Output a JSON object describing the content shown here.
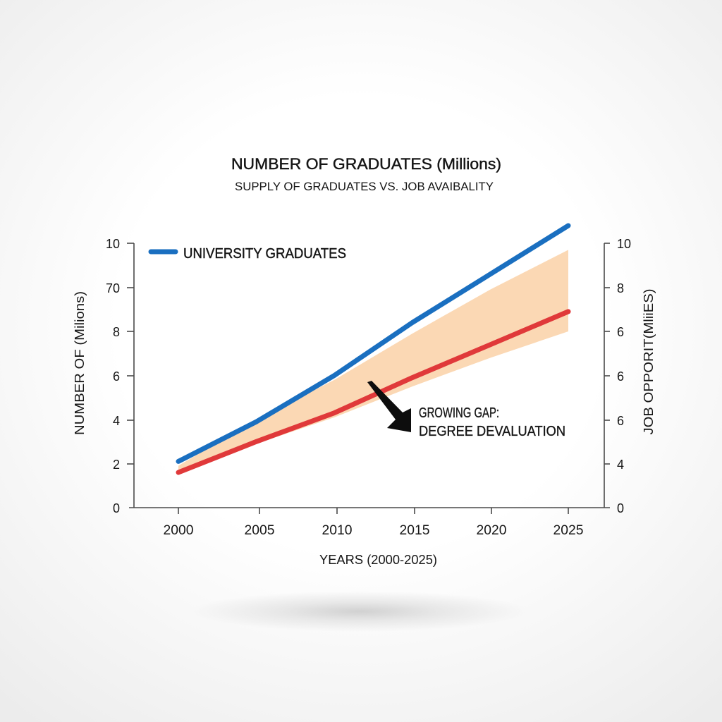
{
  "chart_data": {
    "type": "line",
    "title": "NUMBER OF GRADUATES (Millions)",
    "subtitle": "SUPPLY OF GRADUATES VS. JOB AVAIBALITY",
    "xlabel": "YEARS (2000-2025)",
    "ylabel_left": "NUMBER OF  (Milions)",
    "ylabel_right": "JOB OPPORIT(MliiES)",
    "categories": [
      "2000",
      "2005",
      "2010",
      "2015",
      "2020",
      "2025"
    ],
    "y_left_ticks": [
      "10",
      "70",
      "8",
      "6",
      "4",
      "2",
      "0"
    ],
    "y_right_ticks": [
      "10",
      "8",
      "6",
      "6",
      "6",
      "4",
      "0"
    ],
    "ylim": [
      0,
      12
    ],
    "grid": false,
    "legend": {
      "position": "top-left",
      "entries": [
        {
          "label": "UNIVERSITY GRADUATES",
          "color": "#1a6fc0"
        }
      ]
    },
    "series": [
      {
        "name": "UNIVERSITY GRADUATES",
        "axis": "left",
        "color": "#1a6fc0",
        "values": [
          2.1,
          3.9,
          6.0,
          8.4,
          10.6,
          12.8
        ]
      },
      {
        "name": "JOB OPPORIT(MliiES)",
        "axis": "right",
        "color": "#e0393a",
        "values": [
          1.6,
          3.0,
          4.3,
          5.9,
          7.4,
          8.9
        ]
      }
    ],
    "gap_band": {
      "color": "#fbd6b0",
      "upper": [
        1.9,
        4.0,
        5.8,
        7.9,
        9.9,
        11.7
      ],
      "lower": [
        1.6,
        2.9,
        4.1,
        5.5,
        6.8,
        8.0
      ]
    },
    "annotation": {
      "line1": "GROWING GAP:",
      "line2": "DEGREE DEVALUATION",
      "arrow": "down-right"
    }
  }
}
